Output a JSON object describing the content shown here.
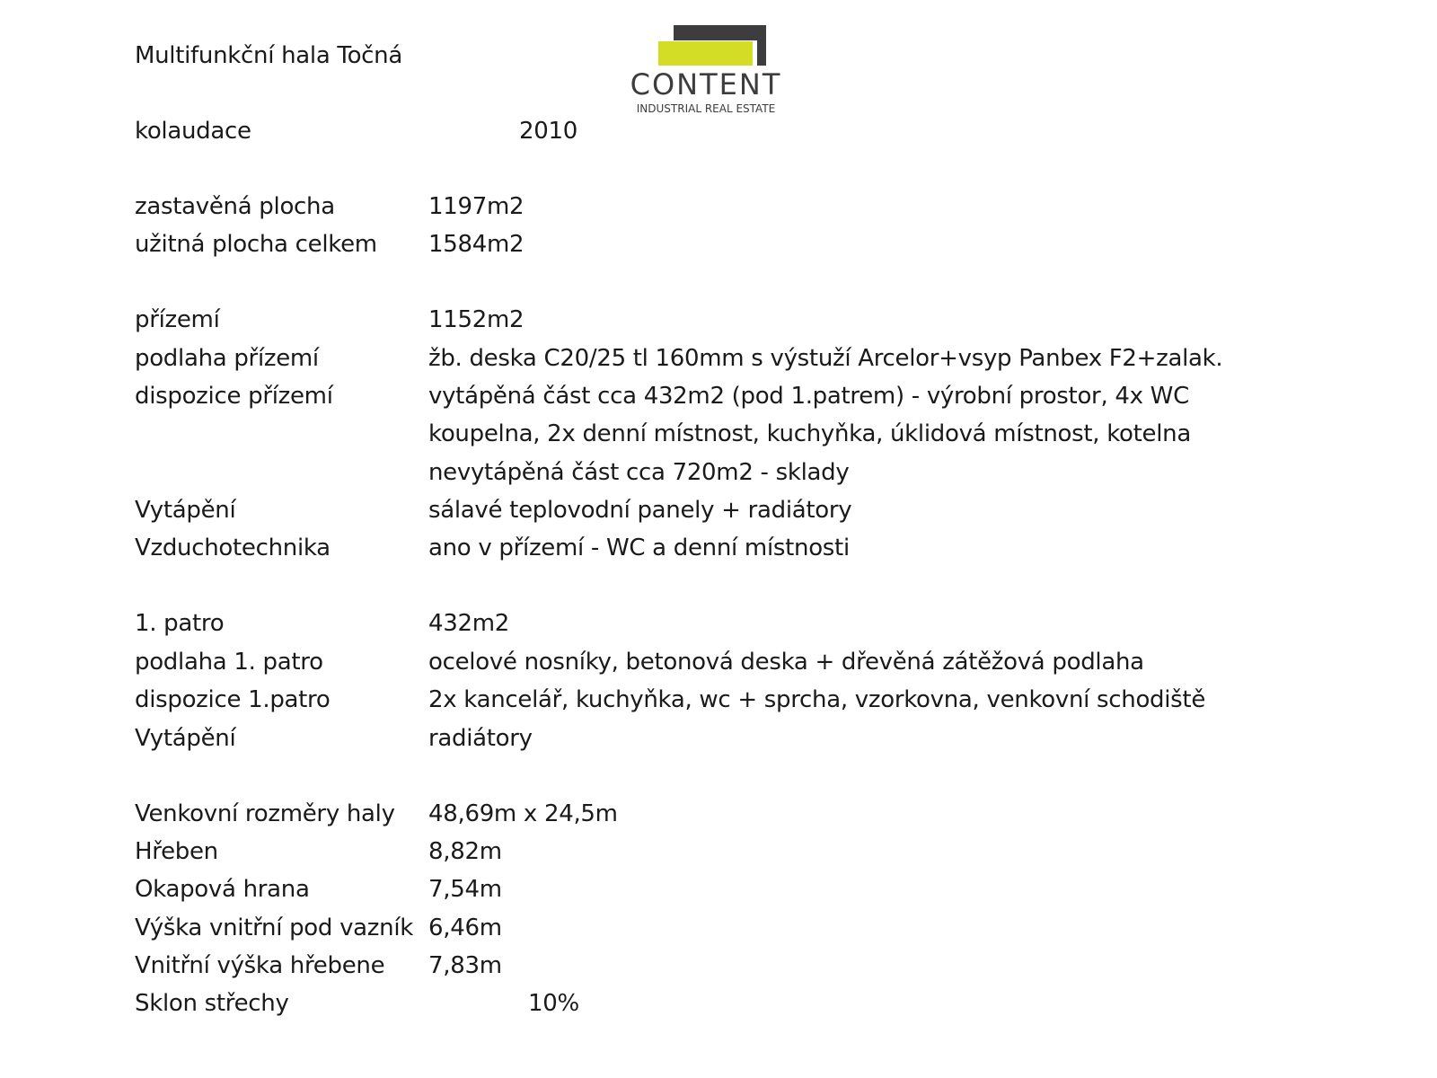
{
  "title": "Multifunkční hala Točná",
  "logo": {
    "name": "CONTENT",
    "tagline": "INDUSTRIAL REAL ESTATE",
    "colors": {
      "dark": "#3d3d3f",
      "accent": "#d4dd26"
    }
  },
  "kolaudace": {
    "label": "kolaudace",
    "value": "2010"
  },
  "areas": [
    {
      "label": "zastavěná plocha",
      "value": "1197m2"
    },
    {
      "label": "užitná plocha celkem",
      "value": "1584m2"
    }
  ],
  "ground_floor": [
    {
      "label": "přízemí",
      "value": "1152m2"
    },
    {
      "label": "podlaha přízemí",
      "value": "žb. deska C20/25 tl 160mm s výstuží Arcelor+vsyp Panbex F2+zalak."
    },
    {
      "label": "dispozice přízemí",
      "value": "vytápěná část cca 432m2 (pod 1.patrem) - výrobní prostor, 4x WC"
    },
    {
      "label": "",
      "value": "koupelna, 2x denní místnost, kuchyňka, úklidová místnost, kotelna"
    },
    {
      "label": "",
      "value": "nevytápěná část cca 720m2 - sklady"
    },
    {
      "label": "Vytápění",
      "value": "sálavé teplovodní panely + radiátory"
    },
    {
      "label": "Vzduchotechnika",
      "value": "ano v přízemí - WC a denní místnosti"
    }
  ],
  "first_floor": [
    {
      "label": "1. patro",
      "value": "432m2"
    },
    {
      "label": "podlaha 1. patro",
      "value": "ocelové nosníky, betonová deska + dřevěná zátěžová podlaha"
    },
    {
      "label": "dispozice 1.patro",
      "value": "2x kancelář, kuchyňka, wc + sprcha, vzorkovna, venkovní schodiště"
    },
    {
      "label": "Vytápění",
      "value": "radiátory"
    }
  ],
  "dimensions": [
    {
      "label": "Venkovní rozměry haly",
      "value": "48,69m x 24,5m"
    },
    {
      "label": "Hřeben",
      "value": "8,82m"
    },
    {
      "label": "Okapová hrana",
      "value": "7,54m"
    },
    {
      "label": "Výška vnitřní pod vazník",
      "value": "6,46m"
    },
    {
      "label": "Vnitřní výška hřebene",
      "value": "7,83m"
    }
  ],
  "roof": {
    "label": "Sklon střechy",
    "value": "10%"
  }
}
